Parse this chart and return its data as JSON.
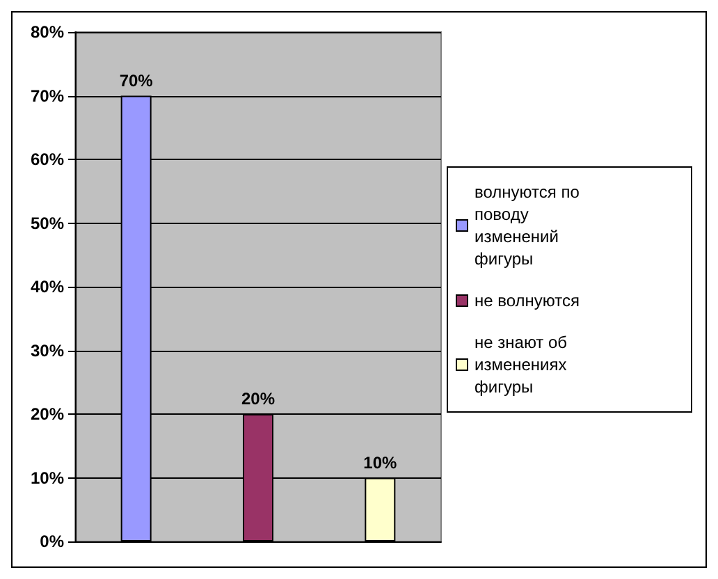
{
  "chart_data": {
    "type": "bar",
    "categories": [
      null,
      null,
      null
    ],
    "series": [
      {
        "name": "волнуются по поводу изменений фигуры",
        "color": "#9999ff",
        "values": [
          70,
          null,
          null
        ],
        "value_labels": [
          "70%",
          null,
          null
        ]
      },
      {
        "name": "не волнуются",
        "color": "#993366",
        "values": [
          null,
          20,
          null
        ],
        "value_labels": [
          null,
          "20%",
          null
        ]
      },
      {
        "name": "не знают об изменениях фигуры",
        "color": "#ffffcc",
        "values": [
          null,
          null,
          10
        ],
        "value_labels": [
          null,
          null,
          "10%"
        ]
      }
    ],
    "ylim": [
      0,
      80
    ],
    "yticks": [
      {
        "value": 0,
        "label": "0%"
      },
      {
        "value": 10,
        "label": "10%"
      },
      {
        "value": 20,
        "label": "20%"
      },
      {
        "value": 30,
        "label": "30%"
      },
      {
        "value": 40,
        "label": "40%"
      },
      {
        "value": 50,
        "label": "50%"
      },
      {
        "value": 60,
        "label": "60%"
      },
      {
        "value": 70,
        "label": "70%"
      },
      {
        "value": 80,
        "label": "80%"
      }
    ],
    "grid": "y",
    "legend": "right"
  }
}
